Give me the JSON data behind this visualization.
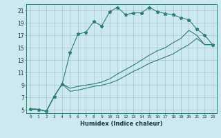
{
  "title": "",
  "xlabel": "Humidex (Indice chaleur)",
  "bg_color": "#cde9f0",
  "line_color": "#2e7d6e",
  "grid_color": "#9bbfbf",
  "xlim": [
    -0.5,
    23.5
  ],
  "ylim": [
    4.5,
    22.0
  ],
  "yticks": [
    5,
    7,
    9,
    11,
    13,
    15,
    17,
    19,
    21
  ],
  "xticks": [
    0,
    1,
    2,
    3,
    4,
    5,
    6,
    7,
    8,
    9,
    10,
    11,
    12,
    13,
    14,
    15,
    16,
    17,
    18,
    19,
    20,
    21,
    22,
    23
  ],
  "series1": [
    [
      0,
      5.2
    ],
    [
      1,
      5.1
    ],
    [
      2,
      4.8
    ],
    [
      3,
      7.2
    ],
    [
      4,
      9.2
    ],
    [
      5,
      14.2
    ],
    [
      6,
      17.2
    ],
    [
      7,
      17.5
    ],
    [
      8,
      19.2
    ],
    [
      9,
      18.5
    ],
    [
      10,
      20.8
    ],
    [
      11,
      21.5
    ],
    [
      12,
      20.3
    ],
    [
      13,
      20.6
    ],
    [
      14,
      20.6
    ],
    [
      15,
      21.5
    ],
    [
      16,
      20.8
    ],
    [
      17,
      20.5
    ],
    [
      18,
      20.3
    ],
    [
      19,
      19.8
    ],
    [
      20,
      19.5
    ],
    [
      21,
      18.0
    ],
    [
      22,
      17.0
    ],
    [
      23,
      15.5
    ]
  ],
  "series2": [
    [
      0,
      5.2
    ],
    [
      1,
      5.1
    ],
    [
      2,
      4.8
    ],
    [
      3,
      7.2
    ],
    [
      4,
      9.2
    ],
    [
      5,
      8.5
    ],
    [
      6,
      8.8
    ],
    [
      7,
      9.0
    ],
    [
      8,
      9.2
    ],
    [
      9,
      9.5
    ],
    [
      10,
      10.0
    ],
    [
      11,
      10.8
    ],
    [
      12,
      11.5
    ],
    [
      13,
      12.2
    ],
    [
      14,
      13.0
    ],
    [
      15,
      13.8
    ],
    [
      16,
      14.5
    ],
    [
      17,
      15.0
    ],
    [
      18,
      15.8
    ],
    [
      19,
      16.5
    ],
    [
      20,
      17.8
    ],
    [
      21,
      17.0
    ],
    [
      22,
      15.5
    ],
    [
      23,
      15.5
    ]
  ],
  "series3": [
    [
      0,
      5.2
    ],
    [
      1,
      5.1
    ],
    [
      2,
      4.8
    ],
    [
      3,
      7.2
    ],
    [
      4,
      9.2
    ],
    [
      5,
      8.0
    ],
    [
      6,
      8.2
    ],
    [
      7,
      8.5
    ],
    [
      8,
      8.8
    ],
    [
      9,
      9.0
    ],
    [
      10,
      9.3
    ],
    [
      11,
      9.8
    ],
    [
      12,
      10.5
    ],
    [
      13,
      11.2
    ],
    [
      14,
      11.8
    ],
    [
      15,
      12.5
    ],
    [
      16,
      13.0
    ],
    [
      17,
      13.5
    ],
    [
      18,
      14.0
    ],
    [
      19,
      14.8
    ],
    [
      20,
      15.5
    ],
    [
      21,
      16.5
    ],
    [
      22,
      15.5
    ],
    [
      23,
      15.5
    ]
  ]
}
